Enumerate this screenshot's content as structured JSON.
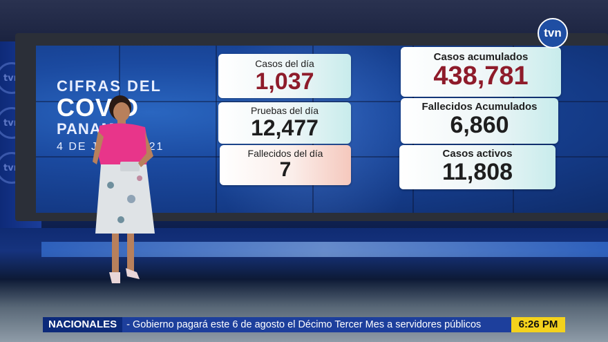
{
  "graphic": {
    "title_line1": "CIFRAS DEL",
    "title_line2": "COVID",
    "title_line3": "PANAMÁ",
    "date": "4 DE JULIO 2021"
  },
  "cards_left": [
    {
      "label": "Casos del día",
      "value": "1,037"
    },
    {
      "label": "Pruebas del día",
      "value": "12,477"
    },
    {
      "label": "Fallecidos del día",
      "value": "7"
    }
  ],
  "cards_right": [
    {
      "label": "Casos acumulados",
      "value": "438,781"
    },
    {
      "label": "Fallecidos Acumulados",
      "value": "6,860"
    },
    {
      "label": "Casos activos",
      "value": "11,808"
    }
  ],
  "channel_logo": "tvn",
  "ticker": {
    "tag": "NACIONALES",
    "headline": "- Gobierno pagará este 6 de agosto el Décimo Tercer Mes a servidores públicos",
    "time": "6:26 PM"
  },
  "colors": {
    "accent_blue": "#1d3f9c",
    "ticker_time_bg": "#f4d21c",
    "value_red": "#8e1b2a"
  }
}
